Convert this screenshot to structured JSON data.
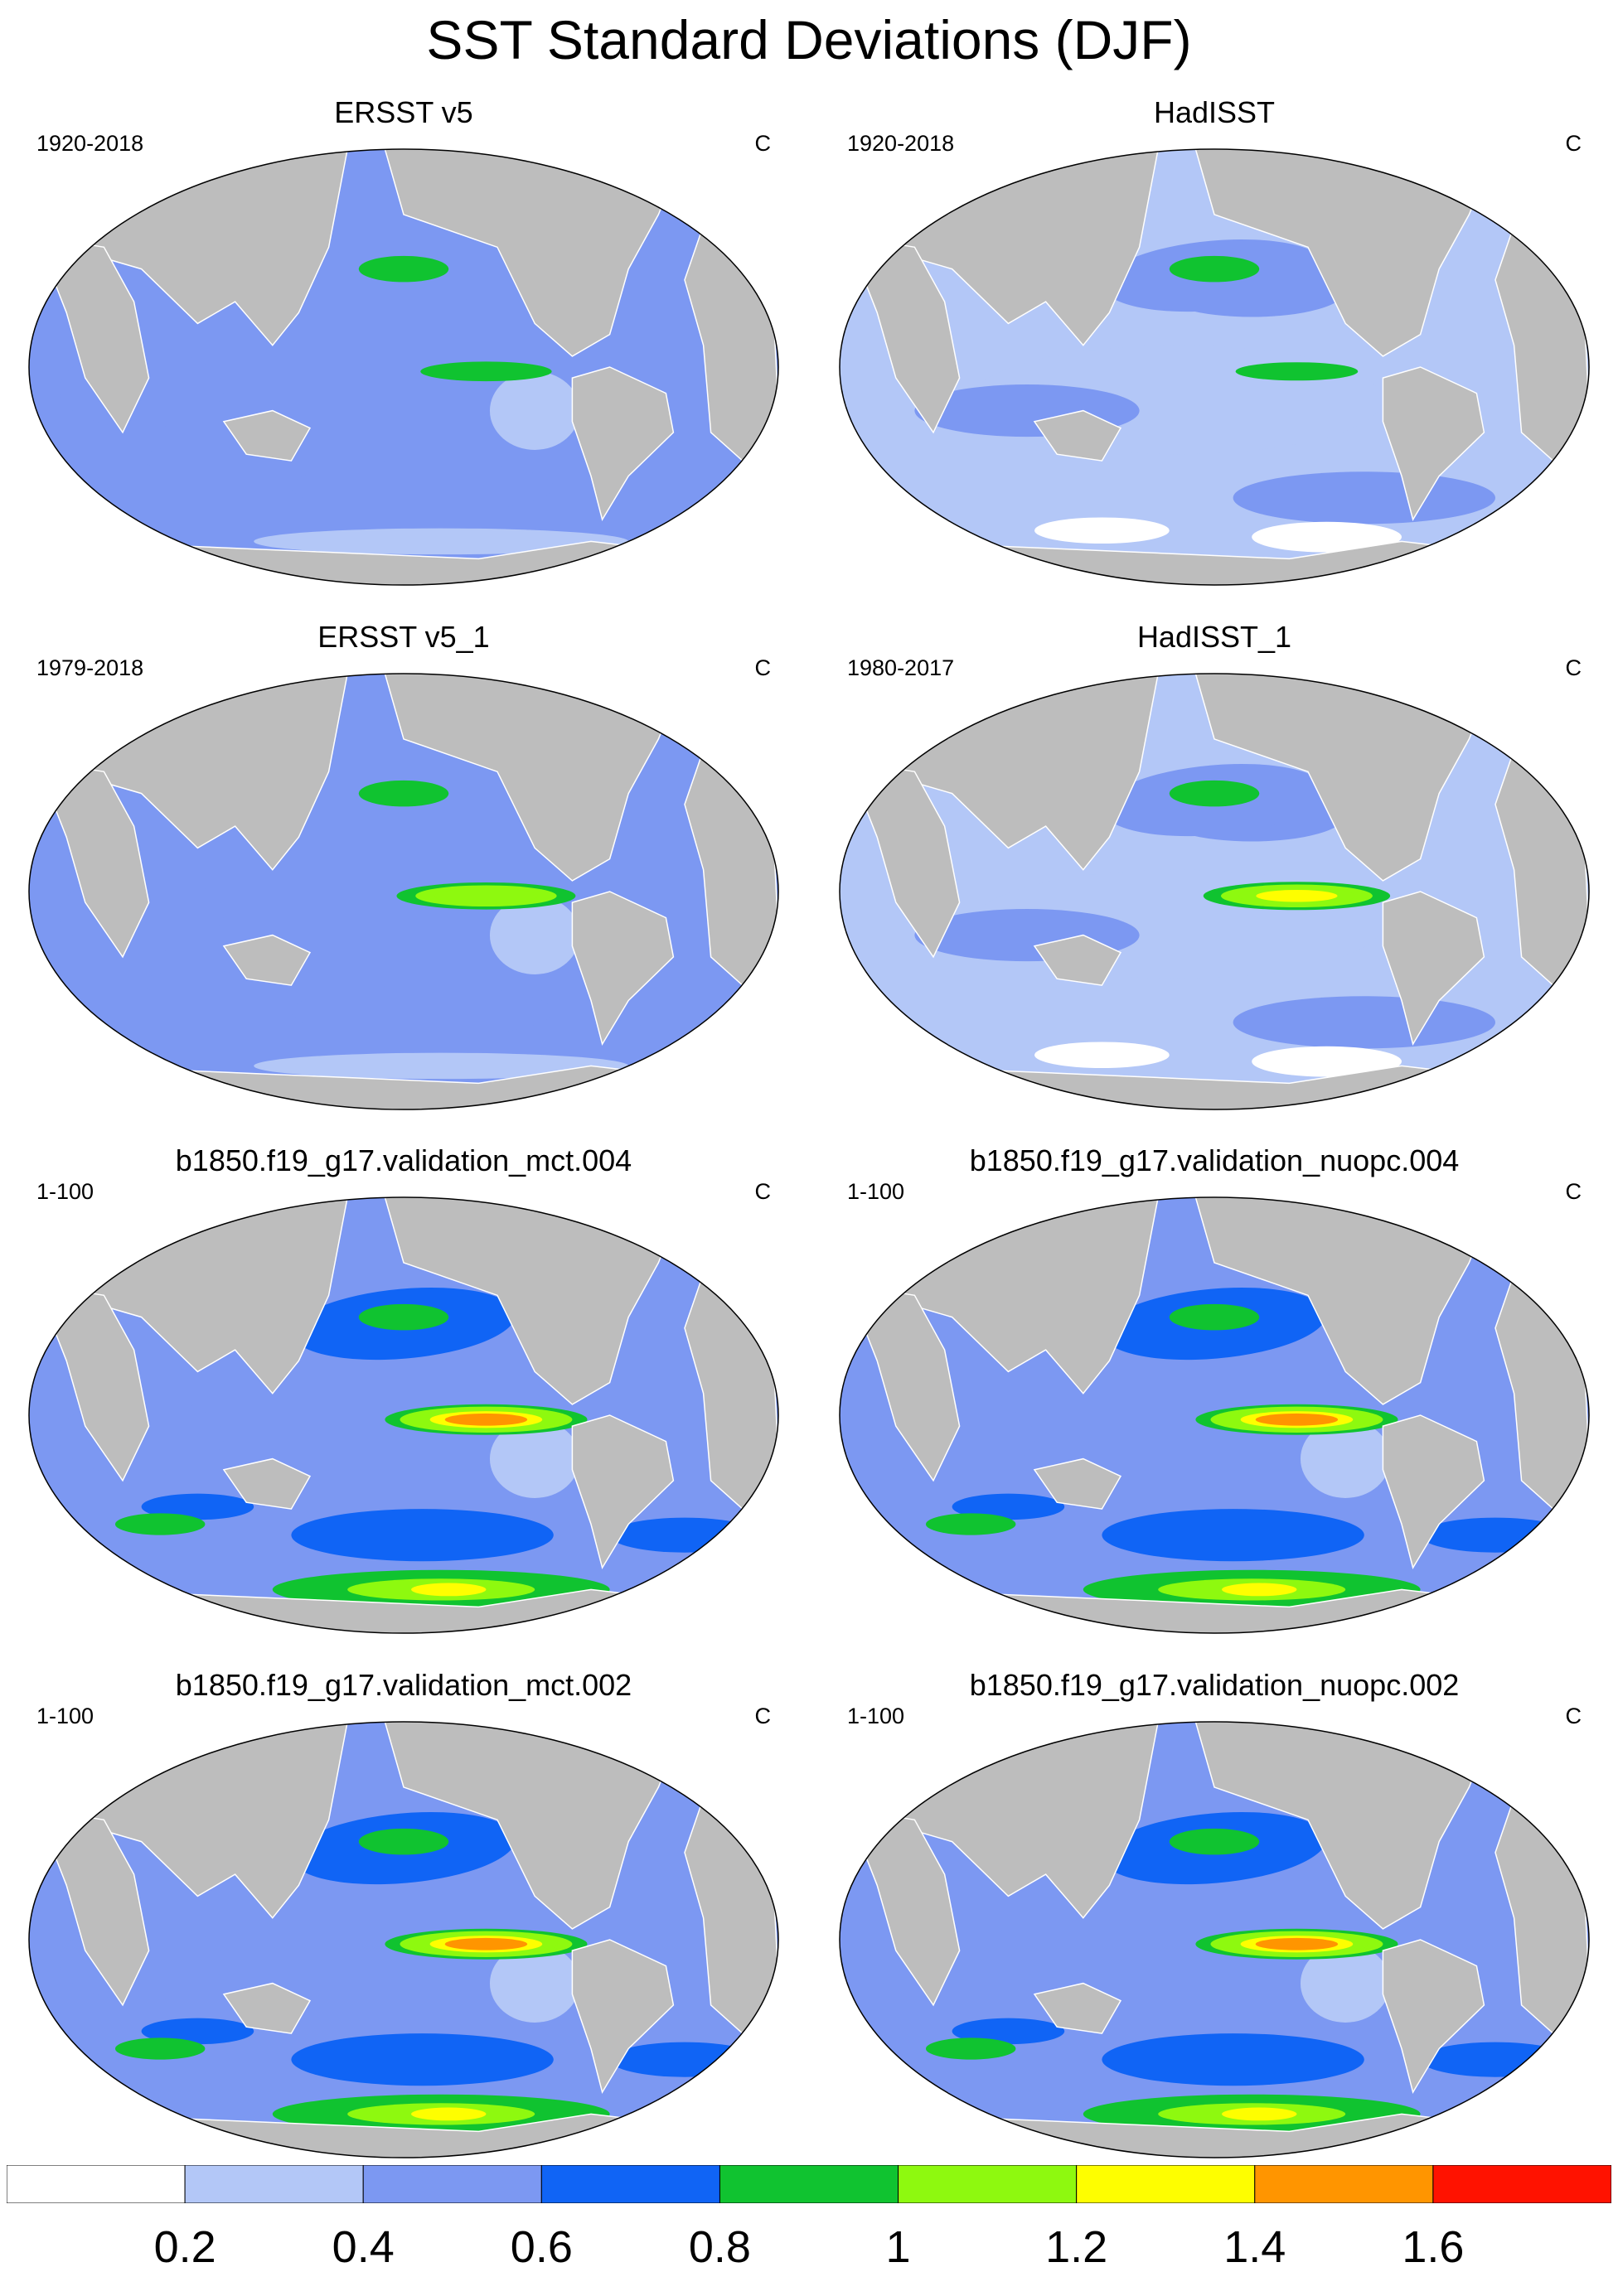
{
  "title": "SST Standard Deviations (DJF)",
  "panels": [
    {
      "title": "ERSST v5",
      "period": "1920-2018",
      "units": "C",
      "style": "obs",
      "enso": 0.95
    },
    {
      "title": "HadISST",
      "period": "1920-2018",
      "units": "C",
      "style": "obs2",
      "enso": 0.9
    },
    {
      "title": "ERSST v5_1",
      "period": "1979-2018",
      "units": "C",
      "style": "obs",
      "enso": 1.35
    },
    {
      "title": "HadISST_1",
      "period": "1980-2017",
      "units": "C",
      "style": "obs2",
      "enso": 1.45
    },
    {
      "title": "b1850.f19_g17.validation_mct.004",
      "period": "1-100",
      "units": "C",
      "style": "model",
      "enso": 1.7
    },
    {
      "title": "b1850.f19_g17.validation_nuopc.004",
      "period": "1-100",
      "units": "C",
      "style": "model",
      "enso": 1.7
    },
    {
      "title": "b1850.f19_g17.validation_mct.002",
      "period": "1-100",
      "units": "C",
      "style": "model",
      "enso": 1.7
    },
    {
      "title": "b1850.f19_g17.validation_nuopc.002",
      "period": "1-100",
      "units": "C",
      "style": "model",
      "enso": 1.7
    }
  ],
  "colorbar": {
    "labels": [
      "0.2",
      "0.4",
      "0.6",
      "0.8",
      "1",
      "1.2",
      "1.4",
      "1.6"
    ],
    "colors": [
      "#ffffff",
      "#b3c7f7",
      "#7c98f2",
      "#1064f5",
      "#10c330",
      "#8ef90f",
      "#fefe00",
      "#ff9500",
      "#ff1200"
    ]
  },
  "land_color": "#bdbdbd",
  "ocean_color": "#b3c7f7"
}
